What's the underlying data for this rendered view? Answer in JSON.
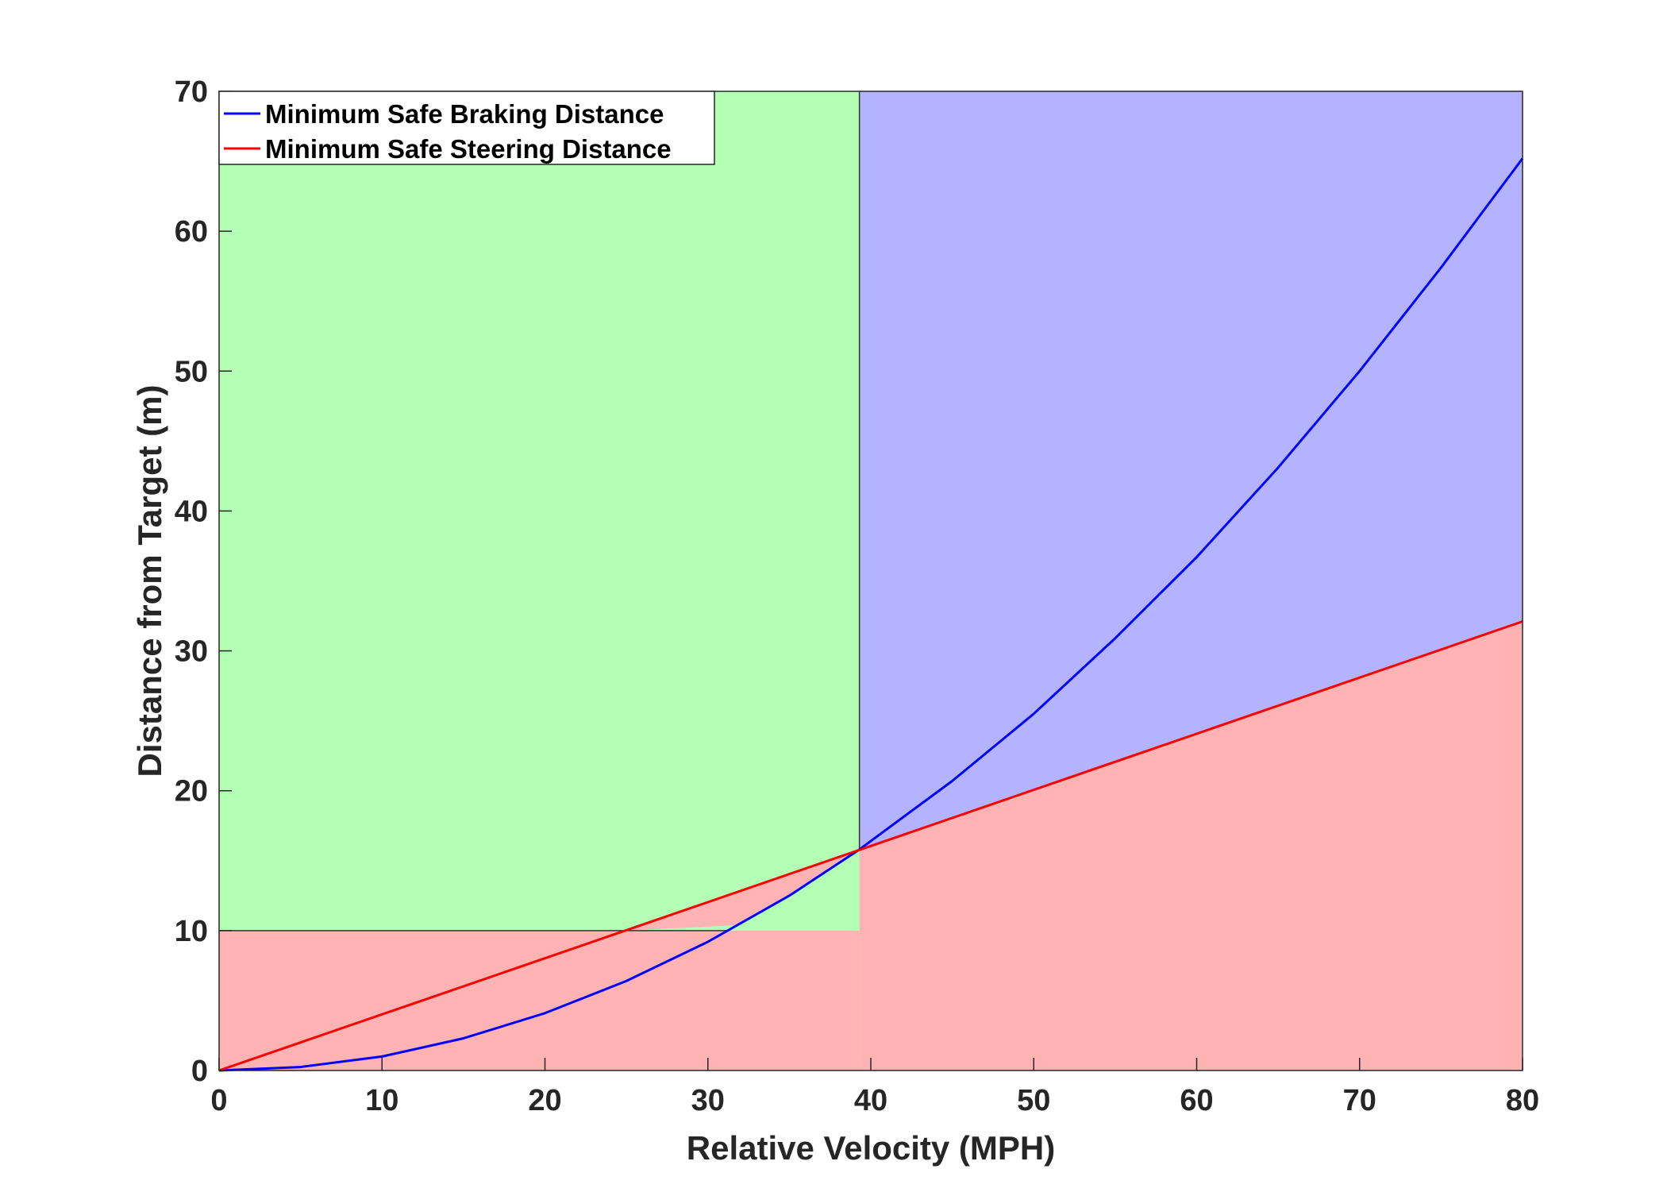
{
  "chart_data": {
    "type": "line",
    "title": "",
    "xlabel": "Relative Velocity (MPH)",
    "ylabel": "Distance  from Target (m)",
    "xlim": [
      0,
      80
    ],
    "ylim": [
      0,
      70
    ],
    "xticks": [
      "0",
      "10",
      "20",
      "30",
      "40",
      "50",
      "60",
      "70",
      "80"
    ],
    "yticks": [
      "0",
      "10",
      "20",
      "30",
      "40",
      "50",
      "60",
      "70"
    ],
    "grid": false,
    "legend_position": "top-left",
    "series": [
      {
        "name": "Minimum Safe Braking Distance",
        "color": "#0000ff",
        "x": [
          0,
          5,
          10,
          15,
          20,
          25,
          30,
          35,
          39.3,
          45,
          50,
          55,
          60,
          65,
          70,
          75,
          80
        ],
        "y": [
          0,
          0.25,
          1.0,
          2.3,
          4.1,
          6.4,
          9.2,
          12.5,
          15.8,
          20.7,
          25.5,
          30.9,
          36.7,
          43.1,
          50.0,
          57.4,
          65.2
        ]
      },
      {
        "name": "Minimum Safe Steering Distance",
        "color": "#ff0000",
        "x": [
          0,
          80
        ],
        "y": [
          0,
          32.1
        ]
      }
    ],
    "regions": [
      {
        "color": "#b3ffb3",
        "description_ref": "green"
      },
      {
        "color": "#b3b3ff",
        "description_ref": "blue"
      },
      {
        "color": "#ffb3b3",
        "description_ref": "red"
      }
    ],
    "boundaries": {
      "vertical_x": 39.3,
      "horizontal_y": 10
    }
  }
}
